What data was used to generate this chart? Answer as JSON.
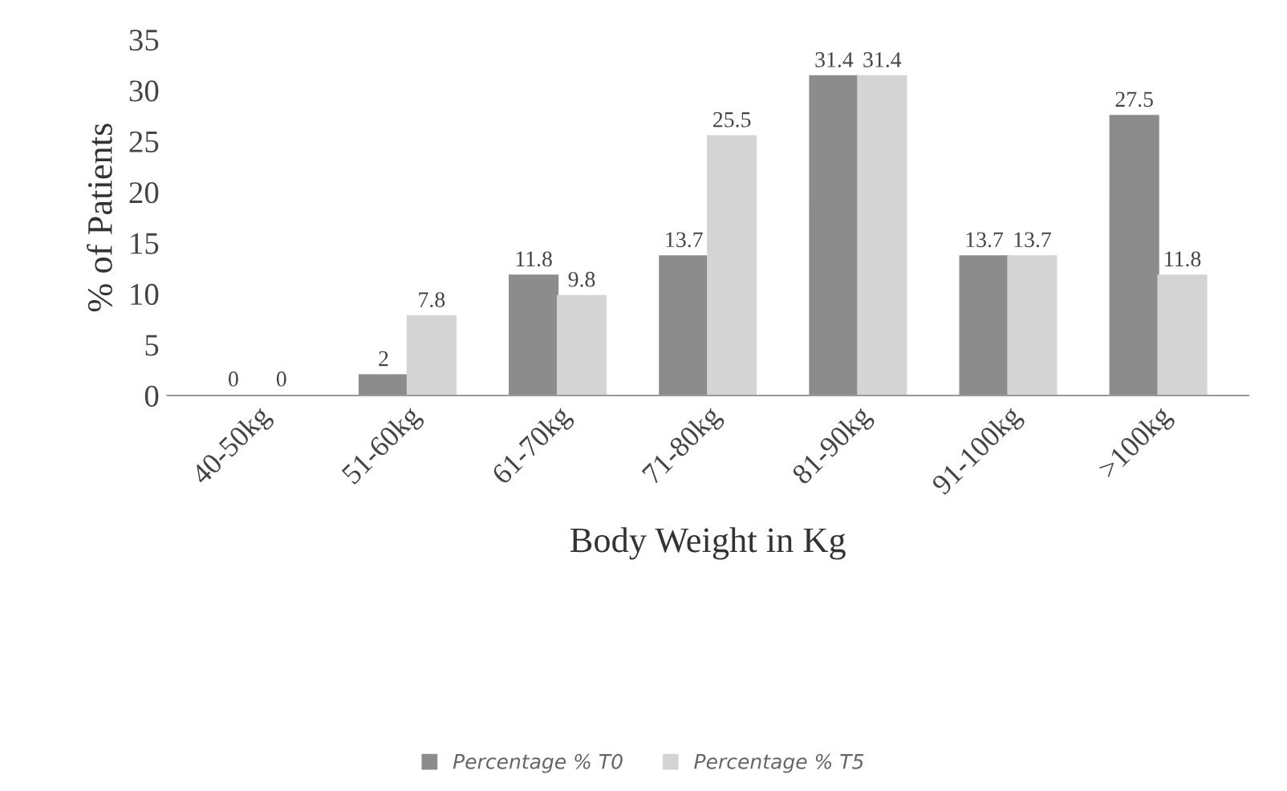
{
  "chart_data": {
    "type": "bar",
    "xlabel": "Body Weight in Kg",
    "ylabel": "% of Patients",
    "categories": [
      "40-50kg",
      "51-60kg",
      "61-70kg",
      "71-80kg",
      "81-90kg",
      "91-100kg",
      ">100kg"
    ],
    "series": [
      {
        "name": "Percentage % T0",
        "color": "#8c8c8c",
        "values": [
          0,
          2,
          11.8,
          13.7,
          31.4,
          13.7,
          27.5
        ]
      },
      {
        "name": "Percentage % T5",
        "color": "#d4d4d4",
        "values": [
          0,
          7.8,
          9.8,
          25.5,
          31.4,
          13.7,
          11.8
        ]
      }
    ],
    "ylim": [
      0,
      35
    ],
    "yticks": [
      0,
      5,
      10,
      15,
      20,
      25,
      30,
      35
    ],
    "data_labels": true,
    "grid": false,
    "legend": "bottom"
  }
}
